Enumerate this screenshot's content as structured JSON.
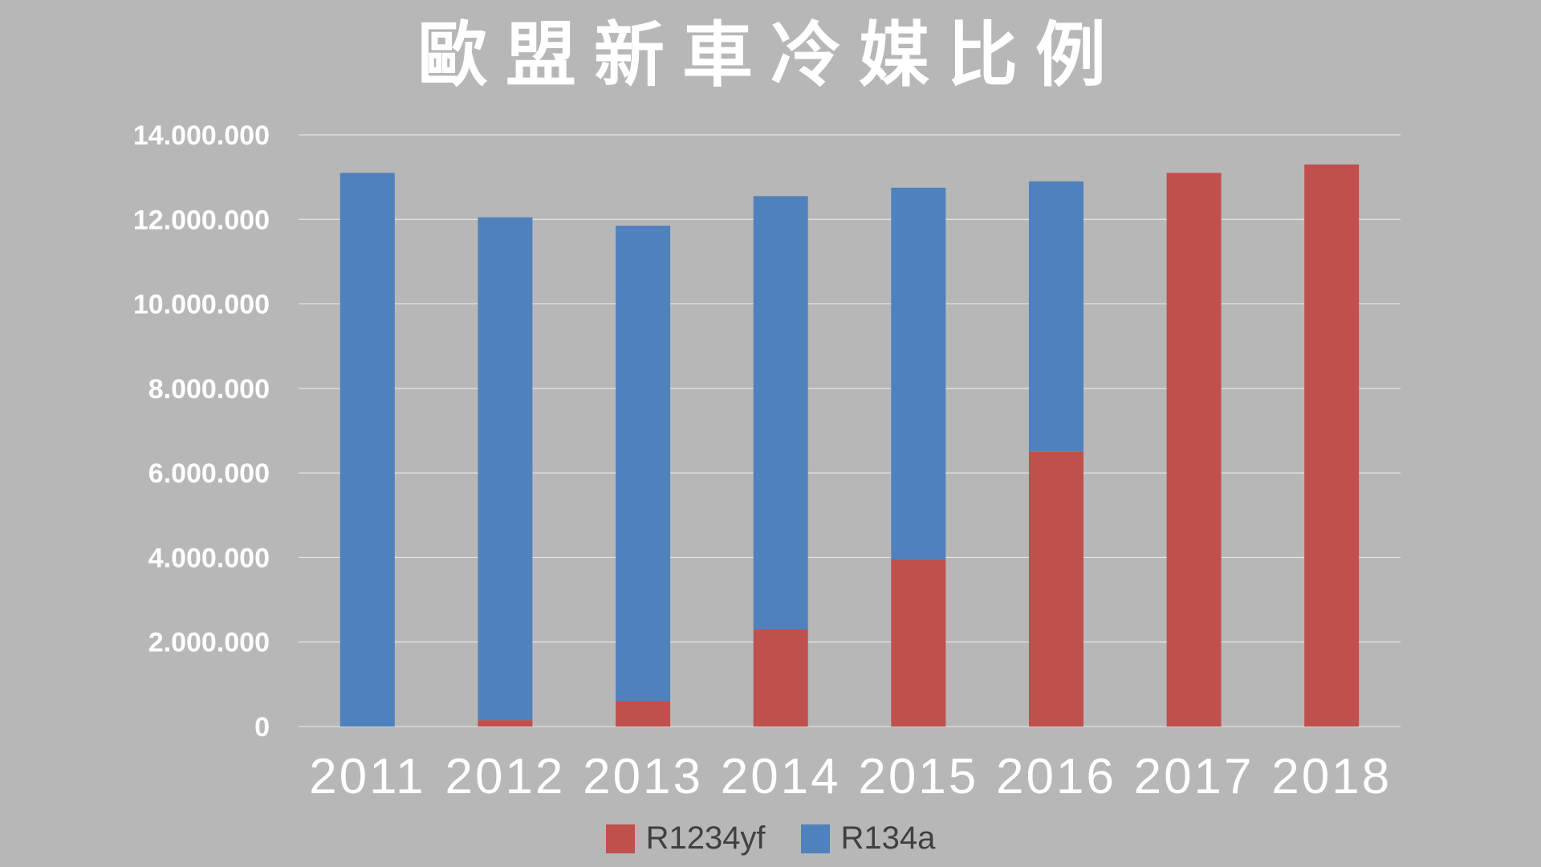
{
  "chart_data": {
    "type": "bar",
    "stacked": true,
    "title": "歐盟新車冷媒比例",
    "xlabel": "",
    "ylabel": "",
    "categories": [
      "2011",
      "2012",
      "2013",
      "2014",
      "2015",
      "2016",
      "2017",
      "2018"
    ],
    "series": [
      {
        "name": "R1234yf",
        "color": "#c0504d",
        "values": [
          0,
          150000,
          600000,
          2300000,
          3950000,
          6500000,
          13100000,
          13300000
        ]
      },
      {
        "name": "R134a",
        "color": "#4f81bd",
        "values": [
          13100000,
          11900000,
          11250000,
          10250000,
          8800000,
          6400000,
          0,
          0
        ]
      }
    ],
    "ylim": [
      0,
      14000000
    ],
    "yticks": [
      {
        "value": 0,
        "label": "0"
      },
      {
        "value": 2000000,
        "label": "2.000.000"
      },
      {
        "value": 4000000,
        "label": "4.000.000"
      },
      {
        "value": 6000000,
        "label": "6.000.000"
      },
      {
        "value": 8000000,
        "label": "8.000.000"
      },
      {
        "value": 10000000,
        "label": "10.000.000"
      },
      {
        "value": 12000000,
        "label": "12.000.000"
      },
      {
        "value": 14000000,
        "label": "14.000.000"
      }
    ],
    "grid": true,
    "legend_position": "bottom"
  }
}
